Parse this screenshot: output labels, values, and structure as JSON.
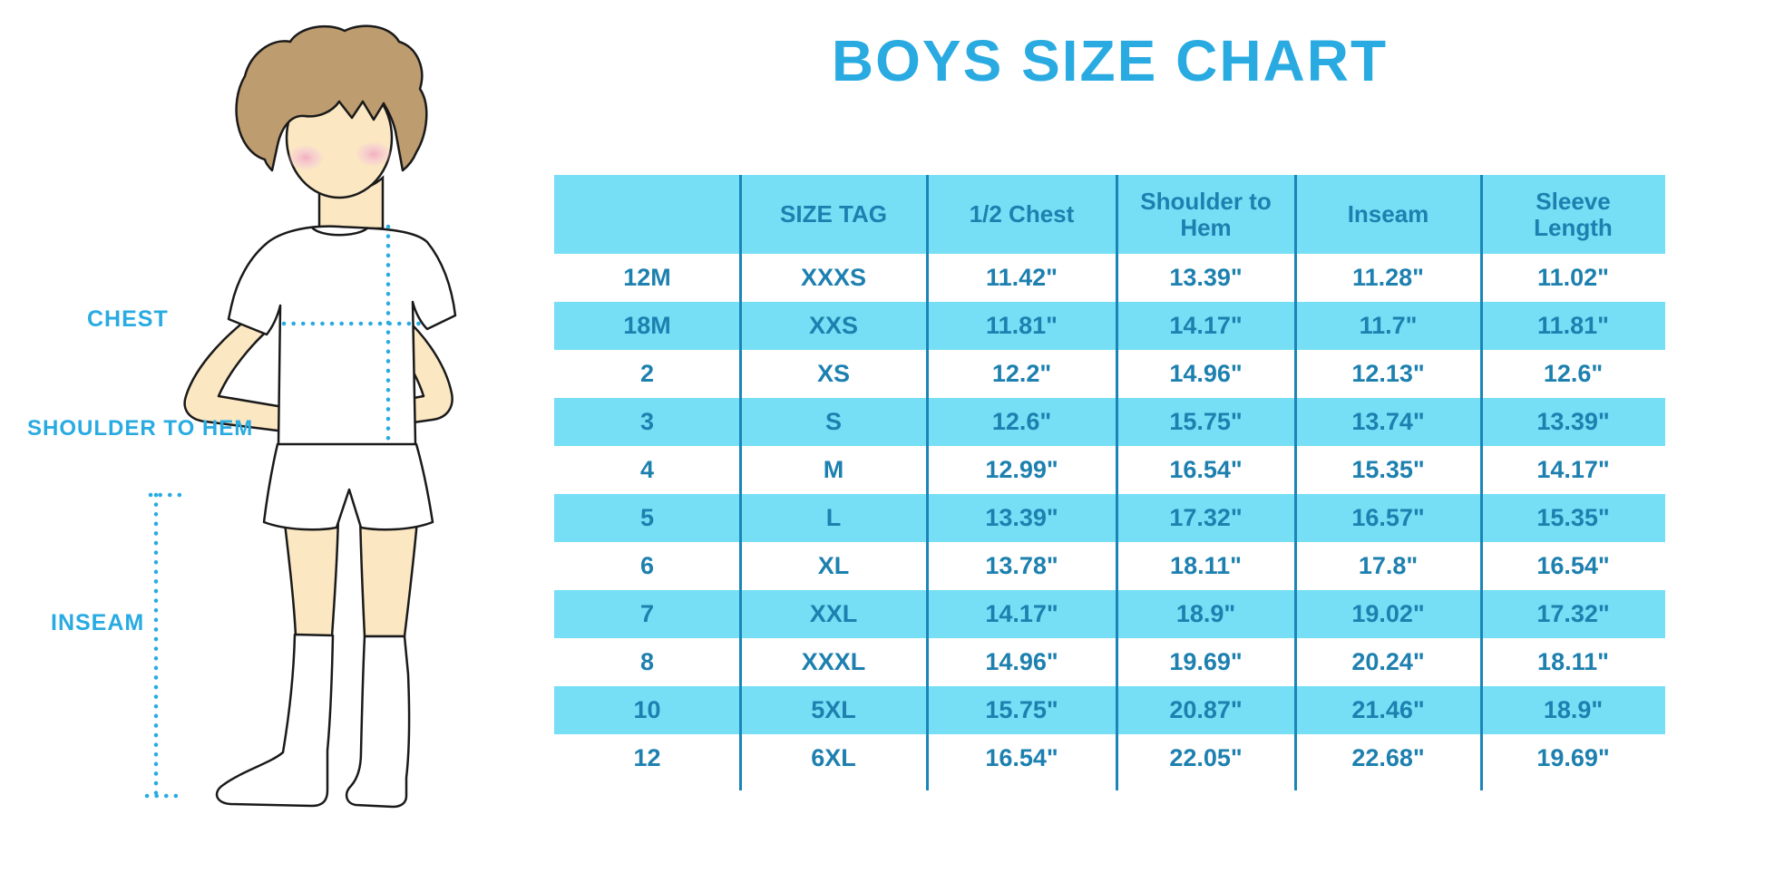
{
  "title": "BOYS SIZE CHART",
  "colors": {
    "accent_blue": "#29ABE2",
    "table_text": "#1D80AF",
    "row_fill": "#76DFF6",
    "divider": "#1A86B8",
    "skin": "#FBE7C2",
    "hair": "#BD9C6F",
    "blush": "#F2AFC1",
    "outline": "#1a1a1a"
  },
  "diagram_labels": {
    "chest": "CHEST",
    "shoulder_to_hem": "SHOULDER TO HEM",
    "inseam": "INSEAM"
  },
  "chart_data": {
    "type": "table",
    "title": "BOYS SIZE CHART",
    "columns": [
      "",
      "SIZE TAG",
      "1/2 Chest",
      "Shoulder to Hem",
      "Inseam",
      "Sleeve Length"
    ],
    "rows": [
      [
        "12M",
        "XXXS",
        "11.42\"",
        "13.39\"",
        "11.28\"",
        "11.02\""
      ],
      [
        "18M",
        "XXS",
        "11.81\"",
        "14.17\"",
        "11.7\"",
        "11.81\""
      ],
      [
        "2",
        "XS",
        "12.2\"",
        "14.96\"",
        "12.13\"",
        "12.6\""
      ],
      [
        "3",
        "S",
        "12.6\"",
        "15.75\"",
        "13.74\"",
        "13.39\""
      ],
      [
        "4",
        "M",
        "12.99\"",
        "16.54\"",
        "15.35\"",
        "14.17\""
      ],
      [
        "5",
        "L",
        "13.39\"",
        "17.32\"",
        "16.57\"",
        "15.35\""
      ],
      [
        "6",
        "XL",
        "13.78\"",
        "18.11\"",
        "17.8\"",
        "16.54\""
      ],
      [
        "7",
        "XXL",
        "14.17\"",
        "18.9\"",
        "19.02\"",
        "17.32\""
      ],
      [
        "8",
        "XXXL",
        "14.96\"",
        "19.69\"",
        "20.24\"",
        "18.11\""
      ],
      [
        "10",
        "5XL",
        "15.75\"",
        "20.87\"",
        "21.46\"",
        "18.9\""
      ],
      [
        "12",
        "6XL",
        "16.54\"",
        "22.05\"",
        "22.68\"",
        "19.69\""
      ]
    ],
    "stripe_pattern": "header and alternating rows (18M, 3, 5, 7, 10) filled light cyan; others white",
    "legend_position": "none",
    "grid": "vertical dividers only"
  }
}
